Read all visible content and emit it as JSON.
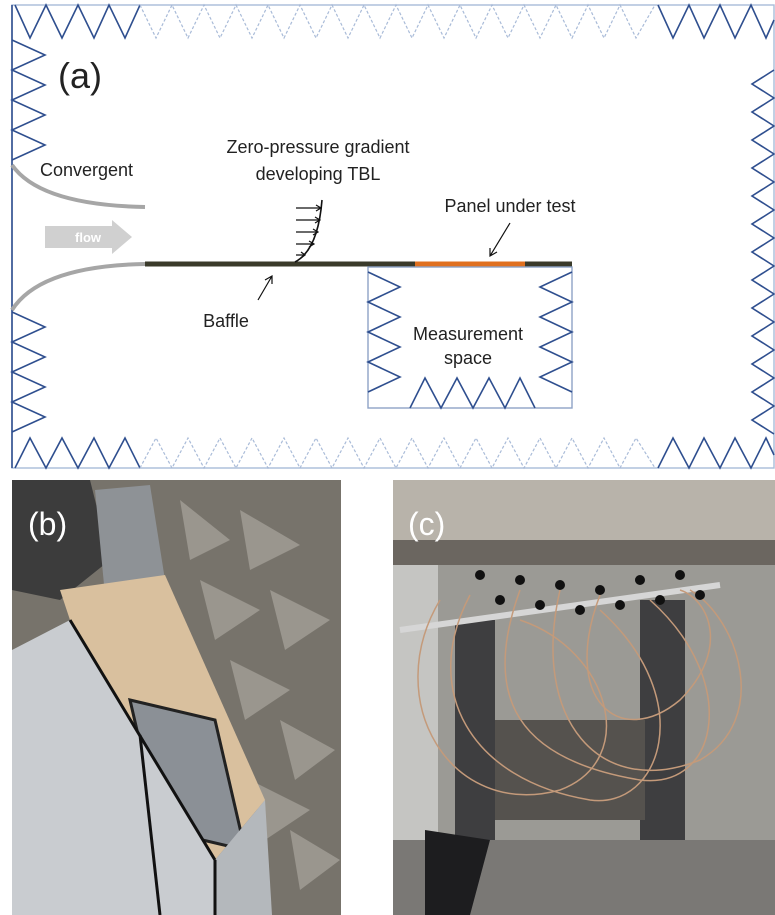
{
  "panels": {
    "a": {
      "label": "(a)",
      "convergent": "Convergent",
      "flow": "flow",
      "tbl": [
        "Zero-pressure gradient",
        "developing TBL"
      ],
      "panel": "Panel under test",
      "baffle": "Baffle",
      "measurement": [
        "Measurement",
        "space"
      ]
    },
    "b": {
      "label": "(b)"
    },
    "c": {
      "label": "(c)"
    }
  }
}
